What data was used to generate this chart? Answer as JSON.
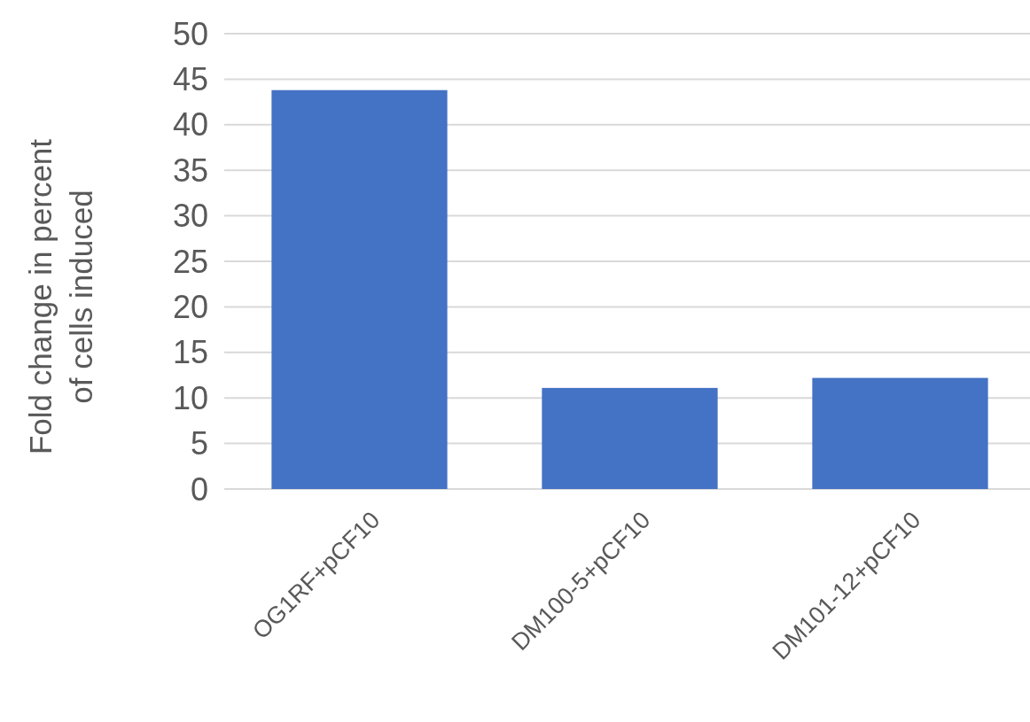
{
  "chart_data": {
    "type": "bar",
    "ylabel": "Fold change in percent of cells induced",
    "categories": [
      "OG1RF+pCF10",
      "DM100-5+pCF10",
      "DM101-12+pCF10"
    ],
    "values": [
      43.8,
      11.1,
      12.2
    ],
    "color": "#4472c4",
    "ylim": [
      0,
      50
    ],
    "yticks": [
      0,
      5,
      10,
      15,
      20,
      25,
      30,
      35,
      40,
      45,
      50
    ],
    "grid": "y"
  }
}
